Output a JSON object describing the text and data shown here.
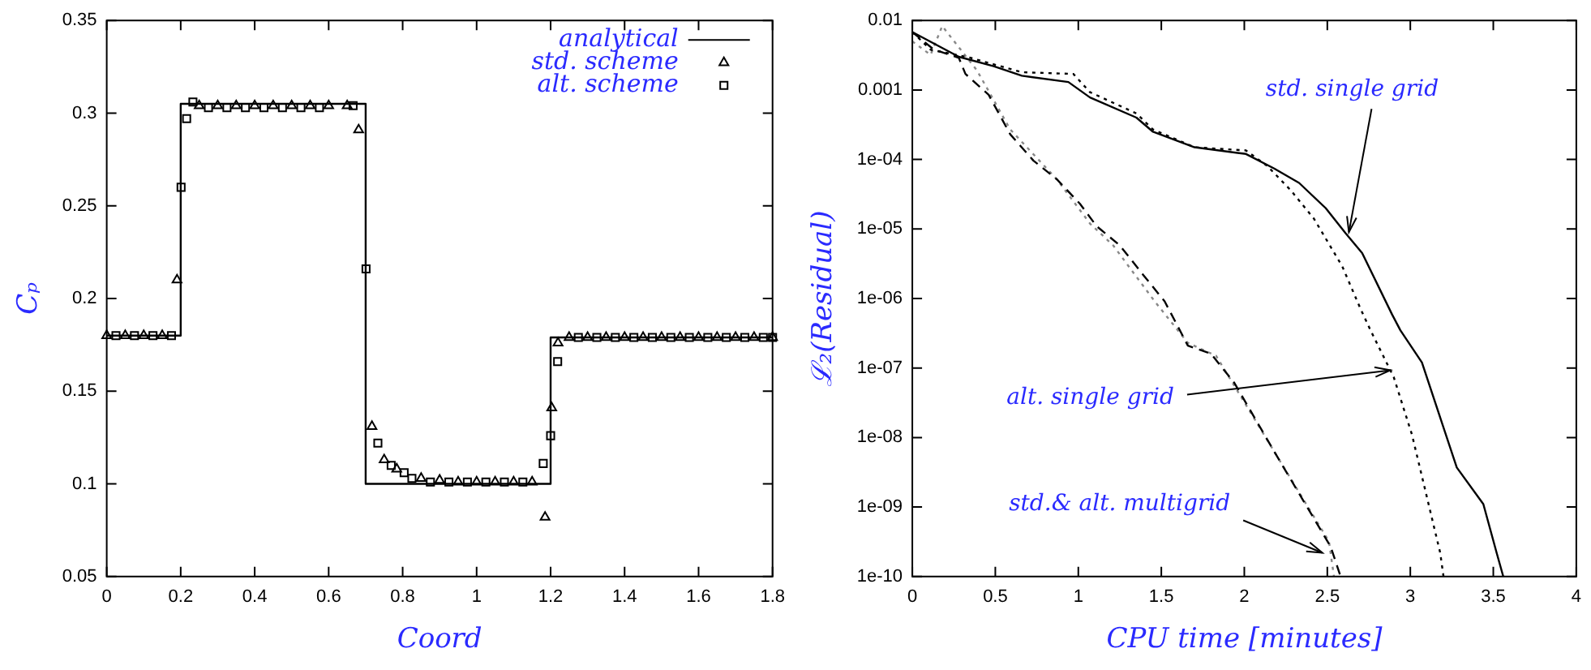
{
  "chart_data": [
    {
      "type": "scatter",
      "xlabel": "Coord",
      "ylabel": "Cₚ",
      "xlim": [
        0,
        1.8
      ],
      "ylim": [
        0.05,
        0.35
      ],
      "xticks": [
        0,
        0.2,
        0.4,
        0.6,
        0.8,
        1,
        1.2,
        1.4,
        1.6,
        1.8
      ],
      "yticks": [
        0.05,
        0.1,
        0.15,
        0.2,
        0.25,
        0.3,
        0.35
      ],
      "legend": "top right",
      "series": [
        {
          "name": "analytical",
          "type": "line",
          "color": "#000000",
          "marker": "none",
          "line_style": "solid",
          "x": [
            0,
            0.2,
            0.2,
            0.7,
            0.7,
            1.2,
            1.2,
            1.8
          ],
          "values": [
            0.18,
            0.18,
            0.305,
            0.305,
            0.1,
            0.1,
            0.179,
            0.179
          ]
        },
        {
          "name": "std. scheme",
          "type": "scatter",
          "color": "#000000",
          "marker": "triangle",
          "x": [
            0,
            0.05,
            0.1,
            0.15,
            0.19,
            0.25,
            0.3,
            0.35,
            0.4,
            0.45,
            0.5,
            0.55,
            0.6,
            0.65,
            0.681,
            0.717,
            0.75,
            0.784,
            0.85,
            0.9,
            0.95,
            1.0,
            1.05,
            1.1,
            1.15,
            1.185,
            1.203,
            1.22,
            1.25,
            1.3,
            1.35,
            1.4,
            1.45,
            1.5,
            1.55,
            1.6,
            1.65,
            1.7,
            1.75,
            1.8
          ],
          "values": [
            0.18,
            0.18,
            0.18,
            0.18,
            0.21,
            0.304,
            0.304,
            0.304,
            0.304,
            0.304,
            0.304,
            0.304,
            0.304,
            0.304,
            0.291,
            0.131,
            0.113,
            0.108,
            0.103,
            0.102,
            0.101,
            0.101,
            0.101,
            0.101,
            0.101,
            0.082,
            0.141,
            0.176,
            0.179,
            0.179,
            0.179,
            0.179,
            0.179,
            0.179,
            0.179,
            0.179,
            0.179,
            0.179,
            0.179,
            0.179
          ]
        },
        {
          "name": "alt. scheme",
          "type": "scatter",
          "color": "#000000",
          "marker": "square",
          "x": [
            0.025,
            0.075,
            0.125,
            0.175,
            0.201,
            0.216,
            0.233,
            0.275,
            0.325,
            0.375,
            0.425,
            0.475,
            0.525,
            0.575,
            0.666,
            0.701,
            0.733,
            0.769,
            0.804,
            0.825,
            0.875,
            0.925,
            0.975,
            1.025,
            1.075,
            1.125,
            1.18,
            1.2,
            1.219,
            1.275,
            1.325,
            1.375,
            1.425,
            1.475,
            1.525,
            1.575,
            1.625,
            1.675,
            1.725,
            1.775,
            1.8
          ],
          "values": [
            0.18,
            0.18,
            0.18,
            0.18,
            0.26,
            0.297,
            0.306,
            0.303,
            0.303,
            0.303,
            0.303,
            0.303,
            0.303,
            0.303,
            0.304,
            0.216,
            0.122,
            0.11,
            0.106,
            0.103,
            0.101,
            0.101,
            0.101,
            0.101,
            0.101,
            0.101,
            0.111,
            0.126,
            0.166,
            0.179,
            0.179,
            0.179,
            0.179,
            0.179,
            0.179,
            0.179,
            0.179,
            0.179,
            0.179,
            0.179,
            0.179
          ]
        }
      ]
    },
    {
      "type": "line",
      "xlabel": "CPU time [minutes]",
      "ylabel": "ℒ₂(Residual)",
      "log": "y",
      "xlim": [
        0,
        4
      ],
      "ylim": [
        1e-10,
        0.01
      ],
      "xticks": [
        0,
        0.5,
        1,
        1.5,
        2,
        2.5,
        3,
        3.5,
        4
      ],
      "yticks": [
        {
          "value": 1e-10,
          "label": "1e-10"
        },
        {
          "value": 1e-09,
          "label": "1e-09"
        },
        {
          "value": 1e-08,
          "label": "1e-08"
        },
        {
          "value": 1e-07,
          "label": "1e-07"
        },
        {
          "value": 1e-06,
          "label": "1e-06"
        },
        {
          "value": 1e-05,
          "label": "1e-05"
        },
        {
          "value": 0.0001,
          "label": "1e-04"
        },
        {
          "value": 0.001,
          "label": "0.001"
        },
        {
          "value": 0.01,
          "label": "0.01"
        }
      ],
      "marker": "none",
      "series": [
        {
          "color": "#000000",
          "line_style": "solid",
          "x": [
            0,
            0.28,
            0.49,
            0.66,
            0.94,
            1.07,
            1.35,
            1.45,
            1.7,
            2.01,
            2.18,
            2.33,
            2.49,
            2.61,
            2.71,
            2.89,
            2.94,
            3.07,
            3.28,
            3.44,
            3.52,
            3.56
          ],
          "values": [
            0.0068,
            0.003,
            0.0022,
            0.0016,
            0.0013,
            0.00078,
            0.0004,
            0.00025,
            0.00015,
            0.00012,
            7.4e-05,
            4.6e-05,
            2e-05,
            8.7e-06,
            4.5e-06,
            5.9e-07,
            3.5e-07,
            1.2e-07,
            3.7e-09,
            1.1e-09,
            2.2e-10,
            1e-10
          ]
        },
        {
          "color": "#000000",
          "line_style": "dotted",
          "x": [
            0,
            0.11,
            0.35,
            0.66,
            0.97,
            1.07,
            1.35,
            1.45,
            1.7,
            2.01,
            2.14,
            2.28,
            2.42,
            2.59,
            2.7,
            2.76,
            2.9,
            3.01,
            3.18,
            3.2
          ],
          "values": [
            0.0068,
            0.0038,
            0.0029,
            0.0018,
            0.0017,
            0.00093,
            0.00046,
            0.00027,
            0.00015,
            0.000135,
            8e-05,
            3.6e-05,
            1.4e-05,
            2.9e-06,
            7.1e-07,
            3.5e-07,
            7.4e-08,
            1.1e-08,
            2.2e-10,
            1e-10
          ]
        },
        {
          "color": "#000000",
          "line_style": "dashed",
          "x": [
            0,
            0.13,
            0.28,
            0.32,
            0.46,
            0.59,
            0.73,
            0.87,
            1.01,
            1.11,
            1.25,
            1.39,
            1.52,
            1.66,
            1.8,
            1.94,
            2.18,
            2.35,
            2.52,
            2.58
          ],
          "values": [
            0.0068,
            0.0038,
            0.0029,
            0.0017,
            0.00085,
            0.00023,
            9.6e-05,
            5.2e-05,
            2.3e-05,
            1.1e-05,
            5.8e-06,
            2.2e-06,
            9.1e-07,
            2.1e-07,
            1.6e-07,
            6.1e-08,
            6.3e-09,
            1.3e-09,
            2.7e-10,
            1e-10
          ]
        },
        {
          "color": "#888888",
          "line_style": "dotted",
          "x": [
            0,
            0.11,
            0.18,
            0.39,
            0.59,
            0.87,
            1.07,
            1.21,
            1.46,
            1.66,
            1.83,
            2.18,
            2.51,
            2.54
          ],
          "values": [
            0.005,
            0.0032,
            0.0083,
            0.0019,
            0.00027,
            5.2e-05,
            1.2e-05,
            5.8e-06,
            9.1e-07,
            2.3e-07,
            1.5e-07,
            6.3e-09,
            3.2e-10,
            1e-10
          ]
        }
      ],
      "annotations": [
        {
          "text": "std. single grid",
          "x": 2.63,
          "y": 9e-06
        },
        {
          "text": "alt. single grid",
          "x": 2.88,
          "y": 9.3e-08
        },
        {
          "text": "std.& alt. multigrid",
          "x": 2.47,
          "y": 2.2e-10
        }
      ]
    }
  ]
}
